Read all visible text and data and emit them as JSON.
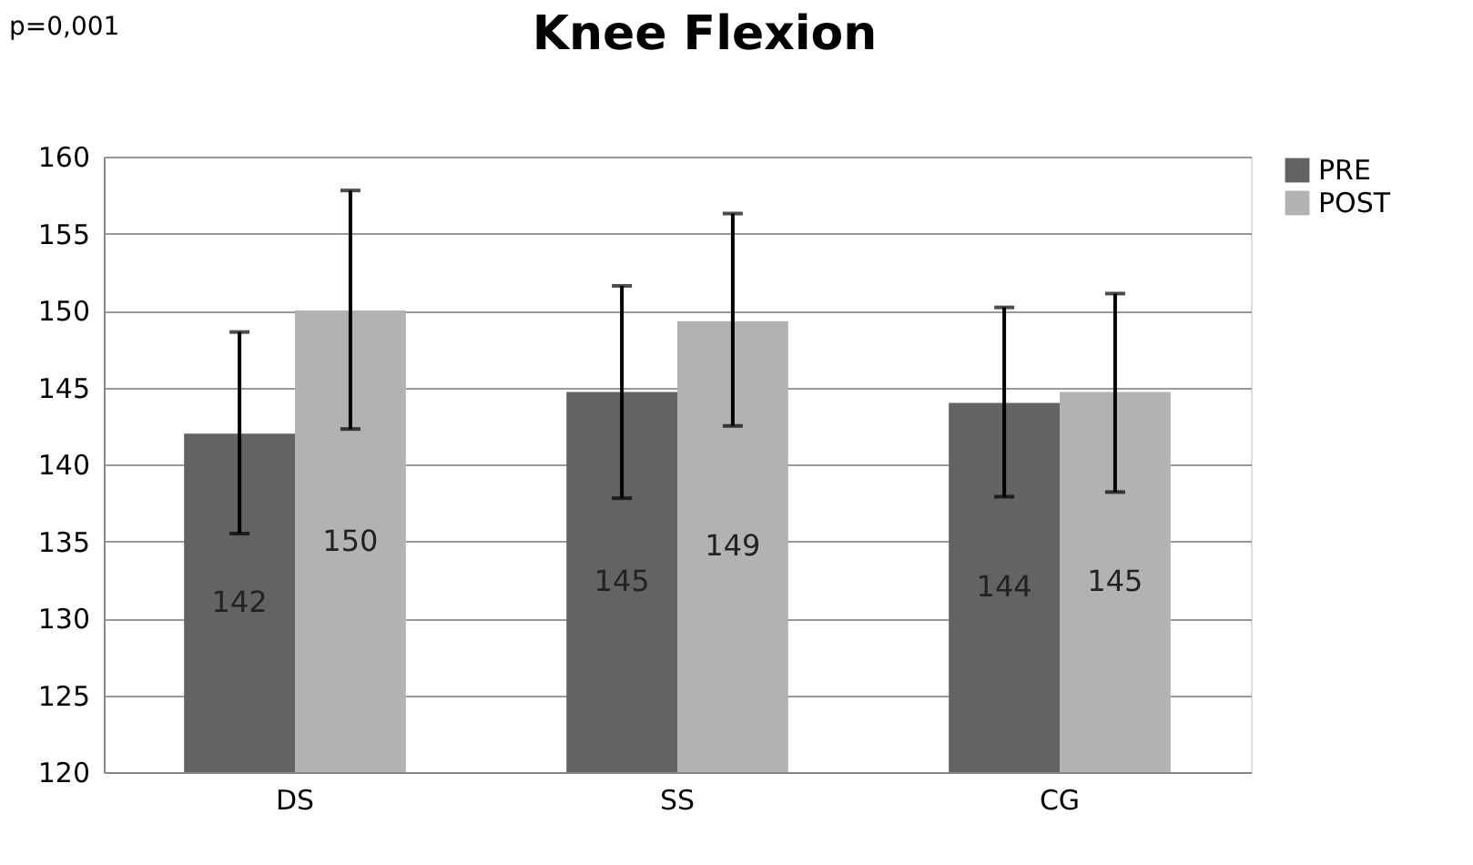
{
  "chart_data": {
    "type": "bar",
    "title": "Knee Flexion",
    "annotations": [
      "p=0,001"
    ],
    "categories": [
      "DS",
      "SS",
      "CG"
    ],
    "series": [
      {
        "name": "PRE",
        "color": "#636363",
        "values": [
          142.0,
          144.7,
          144.0
        ],
        "errors": [
          [
            135.5,
            148.6
          ],
          [
            137.8,
            151.6
          ],
          [
            137.9,
            150.2
          ]
        ],
        "value_labels": [
          "142",
          "145",
          "144"
        ]
      },
      {
        "name": "POST",
        "color": "#b2b2b2",
        "values": [
          150.0,
          149.3,
          144.7
        ],
        "errors": [
          [
            142.3,
            157.8
          ],
          [
            142.5,
            156.3
          ],
          [
            138.2,
            151.1
          ]
        ],
        "value_labels": [
          "150",
          "149",
          "145"
        ]
      }
    ],
    "ylim": [
      120,
      160
    ],
    "yticks": [
      120,
      125,
      130,
      135,
      140,
      145,
      150,
      155,
      160
    ],
    "grid": "y",
    "legend": "right"
  }
}
